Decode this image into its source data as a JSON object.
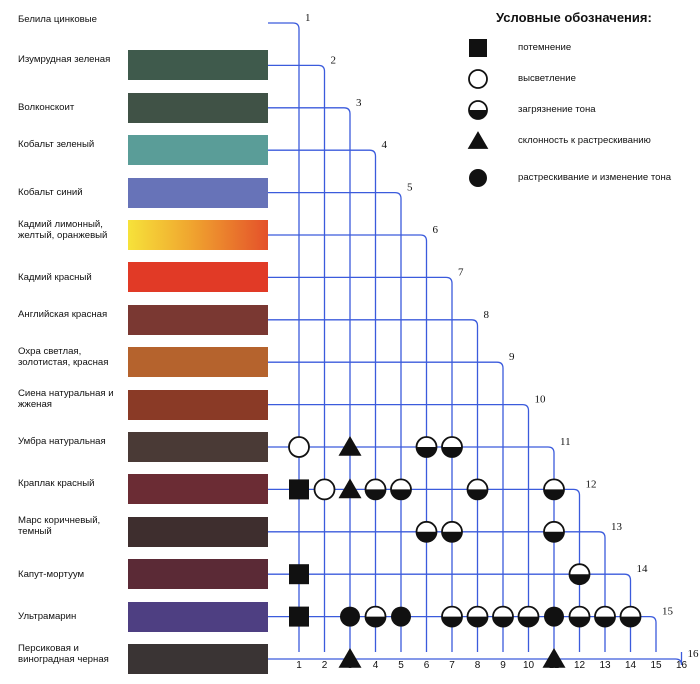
{
  "legend": {
    "title": "Условные обозначения:",
    "items": [
      {
        "symbol": "square",
        "label": "потемнение"
      },
      {
        "symbol": "open-circle",
        "label": "высветление"
      },
      {
        "symbol": "half-circle",
        "label": "загрязнение тона"
      },
      {
        "symbol": "triangle",
        "label": "склонность к растрескиванию"
      },
      {
        "symbol": "filled-circle",
        "label": "растрескивание и изменение тона"
      }
    ]
  },
  "pigments": [
    {
      "num": "1",
      "name": "Белила цинковые",
      "color": null
    },
    {
      "num": "2",
      "name": "Изумрудная зеленая",
      "color": "#3f5a4c"
    },
    {
      "num": "3",
      "name": "Волконскоит",
      "color": "#405246"
    },
    {
      "num": "4",
      "name": "Кобальт зеленый",
      "color": "#5a9d98"
    },
    {
      "num": "5",
      "name": "Кобальт синий",
      "color": "#6773b8"
    },
    {
      "num": "6",
      "name": "Кадмий лимонный, желтый, оранжевый",
      "color": "#e88b2c"
    },
    {
      "num": "7",
      "name": "Кадмий красный",
      "color": "#e13a26"
    },
    {
      "num": "8",
      "name": "Английская красная",
      "color": "#7a3832"
    },
    {
      "num": "9",
      "name": "Охра светлая, золотистая, красная",
      "color": "#b5632d"
    },
    {
      "num": "10",
      "name": "Сиена натуральная и жженая",
      "color": "#8a3a26"
    },
    {
      "num": "11",
      "name": "Умбра натуральная",
      "color": "#4a3a36"
    },
    {
      "num": "12",
      "name": "Краплак красный",
      "color": "#6b2c34"
    },
    {
      "num": "13",
      "name": "Марс коричневый, темный",
      "color": "#3e2e2e"
    },
    {
      "num": "14",
      "name": "Капут-мортуум",
      "color": "#5b2a36"
    },
    {
      "num": "15",
      "name": "Ультрамарин",
      "color": "#4e3f82"
    },
    {
      "num": "16",
      "name": "Персиковая и виноградная черная",
      "color": "#3a3434"
    }
  ],
  "matrix": {
    "row_labels": [
      "1",
      "2",
      "3",
      "4",
      "5",
      "6",
      "7",
      "8",
      "9",
      "10",
      "11",
      "12",
      "13",
      "14",
      "15",
      "16"
    ],
    "col_labels": [
      "1",
      "2",
      "3",
      "4",
      "5",
      "6",
      "7",
      "8",
      "9",
      "10",
      "11",
      "12",
      "13",
      "14",
      "15",
      "16"
    ],
    "cells": [
      {
        "row": "11",
        "col": "1",
        "symbol": "open-circle"
      },
      {
        "row": "11",
        "col": "3",
        "symbol": "triangle"
      },
      {
        "row": "11",
        "col": "6",
        "symbol": "half-circle"
      },
      {
        "row": "11",
        "col": "7",
        "symbol": "half-circle"
      },
      {
        "row": "12",
        "col": "1",
        "symbol": "square"
      },
      {
        "row": "12",
        "col": "2",
        "symbol": "open-circle"
      },
      {
        "row": "12",
        "col": "3",
        "symbol": "triangle"
      },
      {
        "row": "12",
        "col": "4",
        "symbol": "half-circle"
      },
      {
        "row": "12",
        "col": "5",
        "symbol": "half-circle"
      },
      {
        "row": "12",
        "col": "8",
        "symbol": "half-circle"
      },
      {
        "row": "12",
        "col": "11",
        "symbol": "half-circle"
      },
      {
        "row": "13",
        "col": "6",
        "symbol": "half-circle"
      },
      {
        "row": "13",
        "col": "7",
        "symbol": "half-circle"
      },
      {
        "row": "13",
        "col": "11",
        "symbol": "half-circle"
      },
      {
        "row": "14",
        "col": "1",
        "symbol": "square"
      },
      {
        "row": "14",
        "col": "12",
        "symbol": "half-circle"
      },
      {
        "row": "15",
        "col": "1",
        "symbol": "square"
      },
      {
        "row": "15",
        "col": "3",
        "symbol": "filled-circle"
      },
      {
        "row": "15",
        "col": "4",
        "symbol": "half-circle"
      },
      {
        "row": "15",
        "col": "5",
        "symbol": "filled-circle"
      },
      {
        "row": "15",
        "col": "7",
        "symbol": "half-circle"
      },
      {
        "row": "15",
        "col": "8",
        "symbol": "half-circle"
      },
      {
        "row": "15",
        "col": "9",
        "symbol": "half-circle"
      },
      {
        "row": "15",
        "col": "10",
        "symbol": "half-circle"
      },
      {
        "row": "15",
        "col": "11",
        "symbol": "filled-circle"
      },
      {
        "row": "15",
        "col": "12",
        "symbol": "half-circle"
      },
      {
        "row": "15",
        "col": "13",
        "symbol": "half-circle"
      },
      {
        "row": "15",
        "col": "14",
        "symbol": "half-circle"
      },
      {
        "row": "16",
        "col": "3",
        "symbol": "triangle"
      },
      {
        "row": "16",
        "col": "11",
        "symbol": "triangle"
      }
    ]
  },
  "colors": {
    "grid": "#3b5bdc",
    "symbol": "#111111"
  }
}
